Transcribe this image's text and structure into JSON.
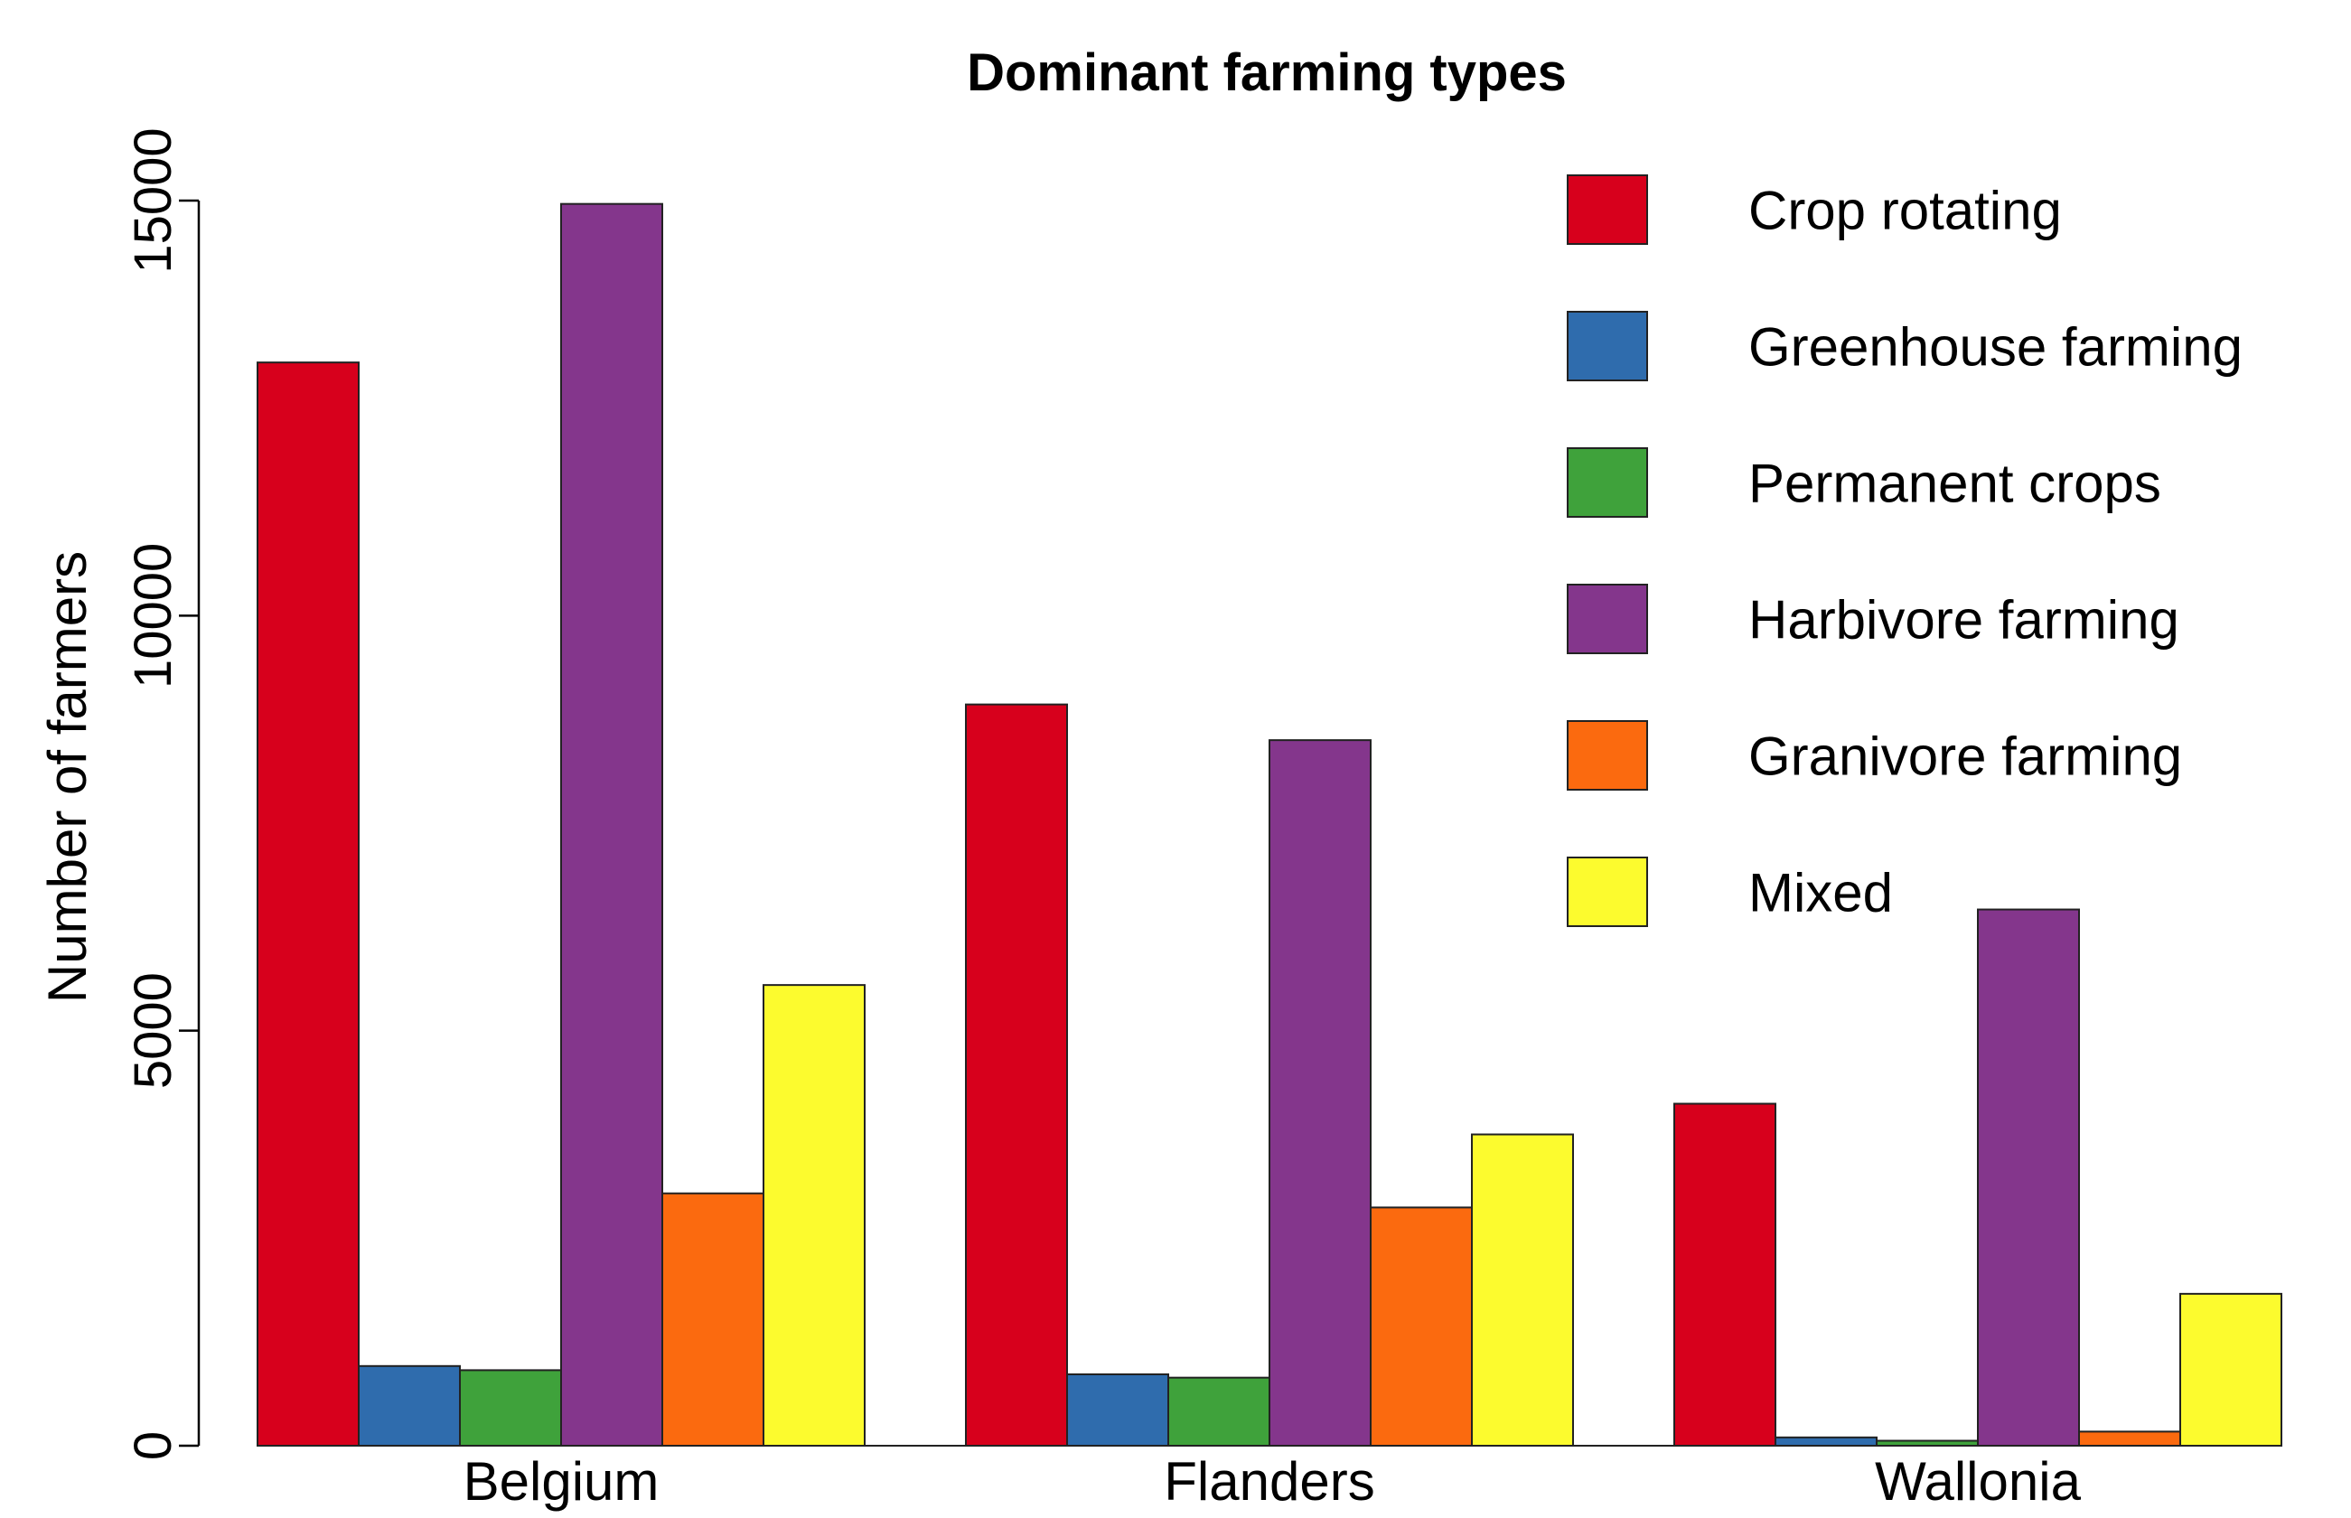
{
  "chart_data": {
    "type": "bar",
    "title": "Dominant farming types",
    "xlabel": "",
    "ylabel": "Number of farmers",
    "ylim": [
      0,
      15000
    ],
    "yticks": [
      0,
      5000,
      10000,
      15000
    ],
    "categories": [
      "Belgium",
      "Flanders",
      "Wallonia"
    ],
    "series": [
      {
        "name": "Crop rotating",
        "color": "#d7001c",
        "values": [
          13050,
          8930,
          4120
        ]
      },
      {
        "name": "Greenhouse farming",
        "color": "#2f6cad",
        "values": [
          960,
          860,
          100
        ]
      },
      {
        "name": "Permanent crops",
        "color": "#3fa23b",
        "values": [
          910,
          820,
          60
        ]
      },
      {
        "name": "Harbivore farming",
        "color": "#84368c",
        "values": [
          14960,
          8500,
          6460
        ]
      },
      {
        "name": "Granivore farming",
        "color": "#fb6a0f",
        "values": [
          3040,
          2870,
          170
        ]
      },
      {
        "name": "Mixed",
        "color": "#fcfb2e",
        "values": [
          5550,
          3750,
          1830
        ]
      }
    ],
    "legend_position": "top-right",
    "grid": false
  }
}
